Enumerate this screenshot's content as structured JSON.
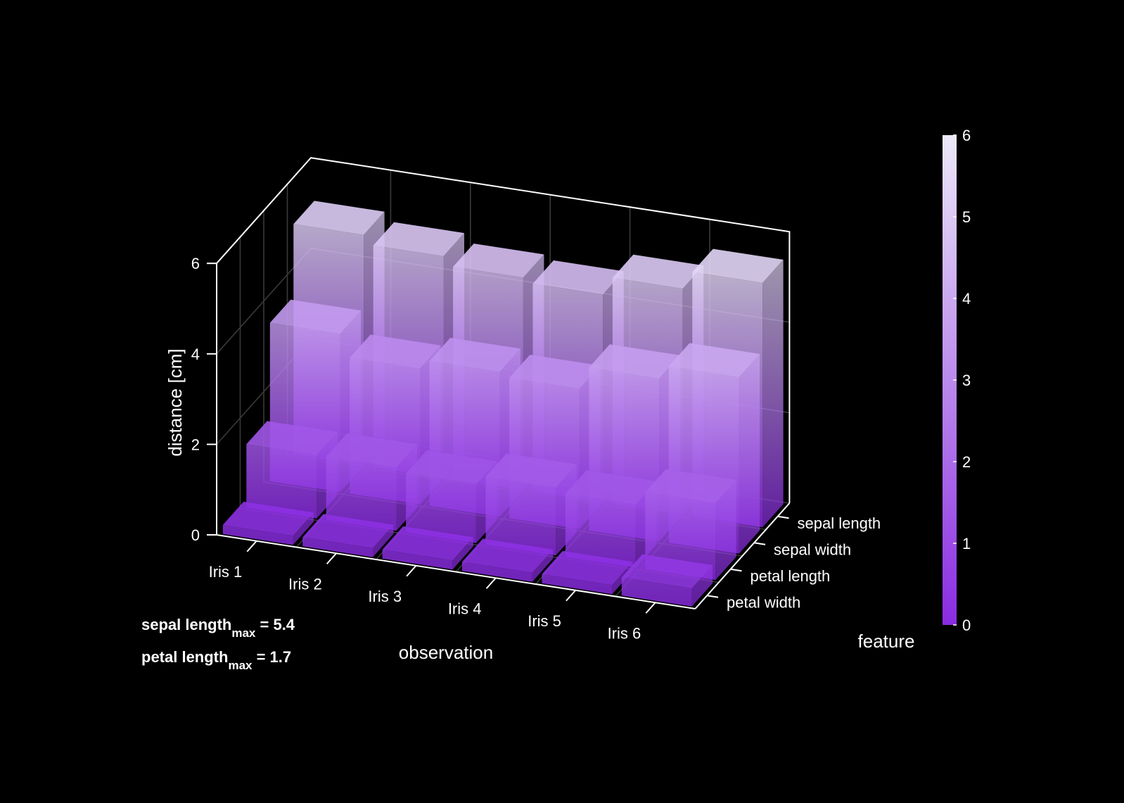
{
  "chart_data": {
    "type": "bar3d",
    "categories": [
      "Iris 1",
      "Iris 2",
      "Iris 3",
      "Iris 4",
      "Iris 5",
      "Iris 6"
    ],
    "features": [
      "petal width",
      "petal length",
      "sepal width",
      "sepal length"
    ],
    "series": [
      {
        "name": "petal width",
        "values": [
          0.2,
          0.2,
          0.2,
          0.2,
          0.2,
          0.4
        ]
      },
      {
        "name": "petal length",
        "values": [
          1.4,
          1.4,
          1.3,
          1.5,
          1.4,
          1.7
        ]
      },
      {
        "name": "sepal width",
        "values": [
          3.5,
          3.0,
          3.2,
          3.1,
          3.6,
          3.9
        ]
      },
      {
        "name": "sepal length",
        "values": [
          5.1,
          4.9,
          4.7,
          4.6,
          5.0,
          5.4
        ]
      }
    ],
    "xlabel": "observation",
    "ylabel": "feature",
    "zlabel": "distance [cm]",
    "zlim": [
      0,
      6
    ],
    "zticks": [
      "0",
      "2",
      "4",
      "6"
    ],
    "grid": true,
    "colorbar": {
      "range": [
        0,
        6
      ],
      "ticks": [
        "0",
        "1",
        "2",
        "3",
        "4",
        "5",
        "6"
      ],
      "color_low": "#8a2be2",
      "color_high": "#ece9f8"
    },
    "annotations": [
      {
        "name": "sepal length",
        "sub": "max",
        "text": " = 5.4"
      },
      {
        "name": "petal length",
        "sub": "max",
        "text": " = 1.7"
      }
    ]
  }
}
